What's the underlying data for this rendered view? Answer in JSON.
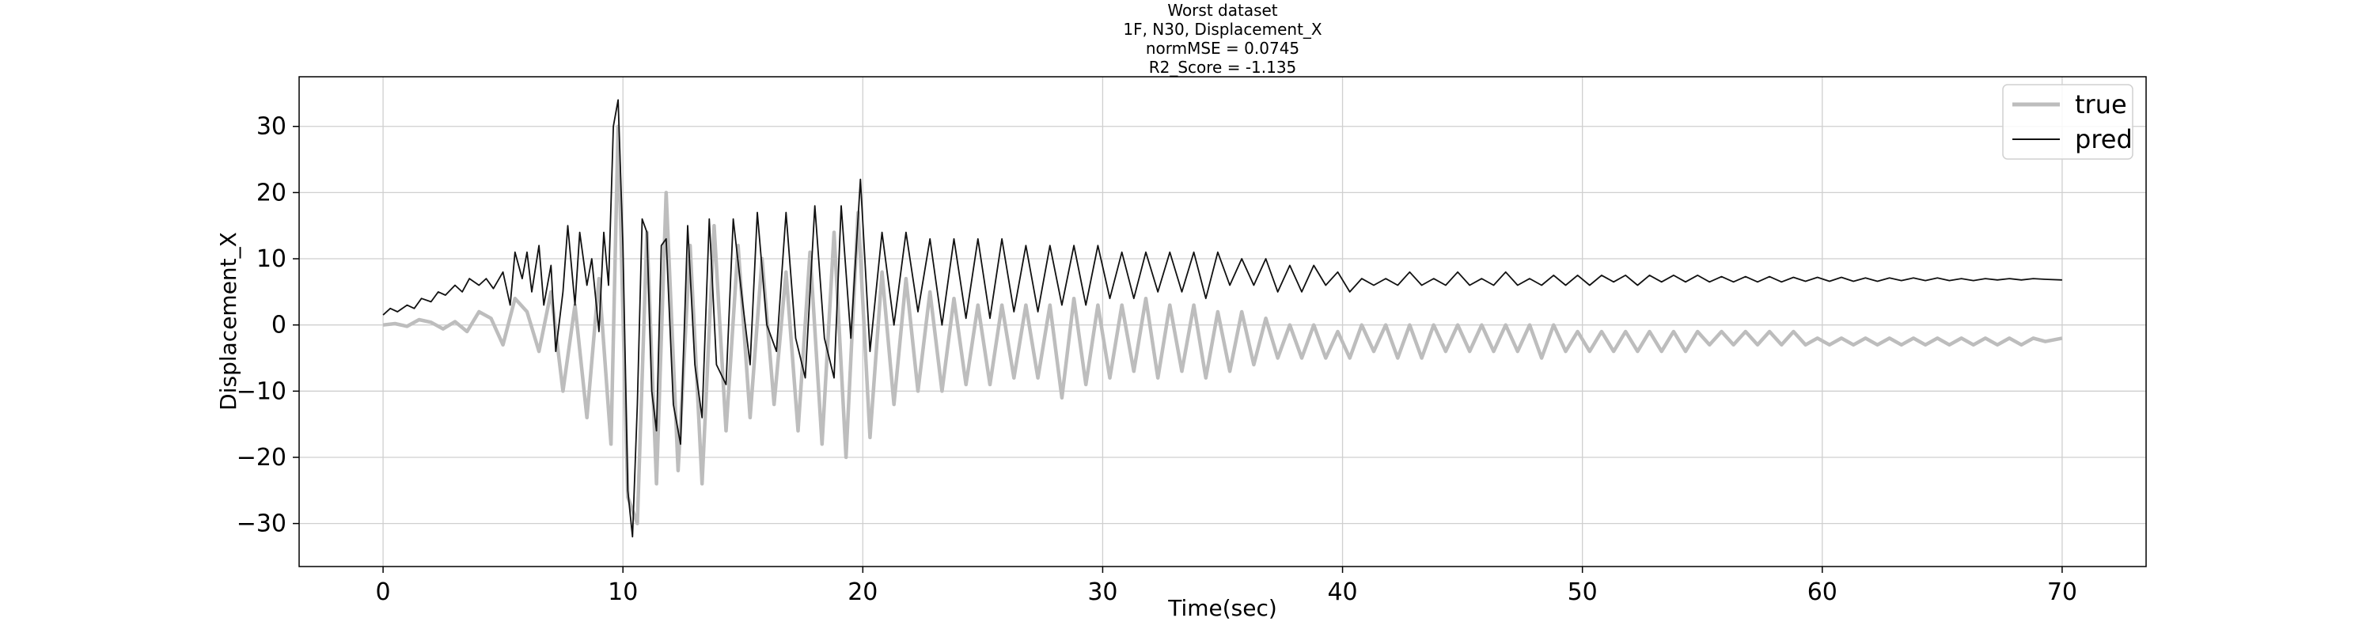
{
  "chart_data": {
    "type": "line",
    "title_lines": [
      "Worst dataset",
      "1F, N30, Displacement_X",
      "normMSE = 0.0745",
      "R2_Score = -1.135"
    ],
    "xlabel": "Time(sec)",
    "ylabel": "Displacement_X",
    "xlim": [
      -3.5,
      73.5
    ],
    "ylim": [
      -36.5,
      37.5
    ],
    "xticks": [
      0,
      10,
      20,
      30,
      40,
      50,
      60,
      70
    ],
    "yticks": [
      -30,
      -20,
      -10,
      0,
      10,
      20,
      30
    ],
    "grid": true,
    "legend": {
      "position": "top-right",
      "entries": [
        "true",
        "pred"
      ]
    },
    "series": [
      {
        "name": "true",
        "color": "#bdbdbd",
        "points": [
          [
            0,
            0
          ],
          [
            0.5,
            0.2
          ],
          [
            1,
            -0.2
          ],
          [
            1.5,
            0.8
          ],
          [
            2,
            0.4
          ],
          [
            2.5,
            -0.6
          ],
          [
            3,
            0.5
          ],
          [
            3.5,
            -1
          ],
          [
            4,
            2
          ],
          [
            4.5,
            1
          ],
          [
            5,
            -3
          ],
          [
            5.5,
            4
          ],
          [
            6,
            2
          ],
          [
            6.5,
            -4
          ],
          [
            7,
            5
          ],
          [
            7.5,
            -10
          ],
          [
            8,
            3
          ],
          [
            8.5,
            -14
          ],
          [
            9,
            7
          ],
          [
            9.5,
            -18
          ],
          [
            9.8,
            30
          ],
          [
            10.2,
            -26
          ],
          [
            10.6,
            -30
          ],
          [
            11,
            14
          ],
          [
            11.4,
            -24
          ],
          [
            11.8,
            20
          ],
          [
            12.3,
            -22
          ],
          [
            12.8,
            12
          ],
          [
            13.3,
            -24
          ],
          [
            13.8,
            15
          ],
          [
            14.3,
            -16
          ],
          [
            14.8,
            12
          ],
          [
            15.3,
            -14
          ],
          [
            15.8,
            10
          ],
          [
            16.3,
            -12
          ],
          [
            16.8,
            8
          ],
          [
            17.3,
            -16
          ],
          [
            17.8,
            11
          ],
          [
            18.3,
            -18
          ],
          [
            18.8,
            14
          ],
          [
            19.3,
            -20
          ],
          [
            19.8,
            17
          ],
          [
            20.3,
            -17
          ],
          [
            20.8,
            8
          ],
          [
            21.3,
            -12
          ],
          [
            21.8,
            7
          ],
          [
            22.3,
            -10
          ],
          [
            22.8,
            5
          ],
          [
            23.3,
            -10
          ],
          [
            23.8,
            4
          ],
          [
            24.3,
            -9
          ],
          [
            24.8,
            3
          ],
          [
            25.3,
            -9
          ],
          [
            25.8,
            3
          ],
          [
            26.3,
            -8
          ],
          [
            26.8,
            3
          ],
          [
            27.3,
            -8
          ],
          [
            27.8,
            3
          ],
          [
            28.3,
            -11
          ],
          [
            28.8,
            4
          ],
          [
            29.3,
            -9
          ],
          [
            29.8,
            3
          ],
          [
            30.3,
            -8
          ],
          [
            30.8,
            3
          ],
          [
            31.3,
            -7
          ],
          [
            31.8,
            4
          ],
          [
            32.3,
            -8
          ],
          [
            32.8,
            3
          ],
          [
            33.3,
            -7
          ],
          [
            33.8,
            3
          ],
          [
            34.3,
            -8
          ],
          [
            34.8,
            2
          ],
          [
            35.3,
            -7
          ],
          [
            35.8,
            2
          ],
          [
            36.3,
            -6
          ],
          [
            36.8,
            1
          ],
          [
            37.3,
            -5
          ],
          [
            37.8,
            0
          ],
          [
            38.3,
            -5
          ],
          [
            38.8,
            0
          ],
          [
            39.3,
            -5
          ],
          [
            39.8,
            -1
          ],
          [
            40.3,
            -5
          ],
          [
            40.8,
            0
          ],
          [
            41.3,
            -4
          ],
          [
            41.8,
            0
          ],
          [
            42.3,
            -5
          ],
          [
            42.8,
            0
          ],
          [
            43.3,
            -5
          ],
          [
            43.8,
            0
          ],
          [
            44.3,
            -4
          ],
          [
            44.8,
            0
          ],
          [
            45.3,
            -4
          ],
          [
            45.8,
            0
          ],
          [
            46.3,
            -4
          ],
          [
            46.8,
            0
          ],
          [
            47.3,
            -4
          ],
          [
            47.8,
            0
          ],
          [
            48.3,
            -5
          ],
          [
            48.8,
            0
          ],
          [
            49.3,
            -4
          ],
          [
            49.8,
            -1
          ],
          [
            50.3,
            -4
          ],
          [
            50.8,
            -1
          ],
          [
            51.3,
            -4
          ],
          [
            51.8,
            -1
          ],
          [
            52.3,
            -4
          ],
          [
            52.8,
            -1
          ],
          [
            53.3,
            -4
          ],
          [
            53.8,
            -1
          ],
          [
            54.3,
            -4
          ],
          [
            54.8,
            -1
          ],
          [
            55.3,
            -3
          ],
          [
            55.8,
            -1
          ],
          [
            56.3,
            -3
          ],
          [
            56.8,
            -1
          ],
          [
            57.3,
            -3
          ],
          [
            57.8,
            -1
          ],
          [
            58.3,
            -3
          ],
          [
            58.8,
            -1
          ],
          [
            59.3,
            -3
          ],
          [
            59.8,
            -2
          ],
          [
            60.3,
            -3
          ],
          [
            60.8,
            -2
          ],
          [
            61.3,
            -3
          ],
          [
            61.8,
            -2
          ],
          [
            62.3,
            -3
          ],
          [
            62.8,
            -2
          ],
          [
            63.3,
            -3
          ],
          [
            63.8,
            -2
          ],
          [
            64.3,
            -3
          ],
          [
            64.8,
            -2
          ],
          [
            65.3,
            -3
          ],
          [
            65.8,
            -2
          ],
          [
            66.3,
            -3
          ],
          [
            66.8,
            -2
          ],
          [
            67.3,
            -3
          ],
          [
            67.8,
            -2
          ],
          [
            68.3,
            -3
          ],
          [
            68.8,
            -2
          ],
          [
            69.3,
            -2.5
          ],
          [
            70,
            -2
          ]
        ]
      },
      {
        "name": "pred",
        "color": "#111111",
        "points": [
          [
            0,
            1.5
          ],
          [
            0.3,
            2.5
          ],
          [
            0.6,
            2
          ],
          [
            1,
            3
          ],
          [
            1.3,
            2.5
          ],
          [
            1.6,
            4
          ],
          [
            2,
            3.5
          ],
          [
            2.3,
            5
          ],
          [
            2.6,
            4.5
          ],
          [
            3,
            6
          ],
          [
            3.3,
            5
          ],
          [
            3.6,
            7
          ],
          [
            4,
            6
          ],
          [
            4.3,
            7
          ],
          [
            4.6,
            5.5
          ],
          [
            5,
            8
          ],
          [
            5.3,
            3
          ],
          [
            5.5,
            11
          ],
          [
            5.8,
            7
          ],
          [
            6,
            11
          ],
          [
            6.2,
            5
          ],
          [
            6.5,
            12
          ],
          [
            6.7,
            3
          ],
          [
            7,
            9
          ],
          [
            7.2,
            -4
          ],
          [
            7.5,
            5
          ],
          [
            7.7,
            15
          ],
          [
            8,
            3
          ],
          [
            8.2,
            14
          ],
          [
            8.5,
            6
          ],
          [
            8.7,
            10
          ],
          [
            9,
            -1
          ],
          [
            9.2,
            14
          ],
          [
            9.4,
            6
          ],
          [
            9.6,
            30
          ],
          [
            9.8,
            34
          ],
          [
            10,
            12
          ],
          [
            10.2,
            -25
          ],
          [
            10.4,
            -32
          ],
          [
            10.6,
            -12
          ],
          [
            10.8,
            16
          ],
          [
            11,
            14
          ],
          [
            11.2,
            -10
          ],
          [
            11.4,
            -16
          ],
          [
            11.6,
            12
          ],
          [
            11.8,
            13
          ],
          [
            12.1,
            -12
          ],
          [
            12.4,
            -18
          ],
          [
            12.7,
            15
          ],
          [
            13,
            -6
          ],
          [
            13.3,
            -14
          ],
          [
            13.6,
            16
          ],
          [
            13.9,
            -6
          ],
          [
            14.3,
            -9
          ],
          [
            14.6,
            16
          ],
          [
            15,
            3
          ],
          [
            15.3,
            -6
          ],
          [
            15.6,
            17
          ],
          [
            16,
            0
          ],
          [
            16.4,
            -4
          ],
          [
            16.8,
            17
          ],
          [
            17.2,
            -2
          ],
          [
            17.6,
            -8
          ],
          [
            18,
            18
          ],
          [
            18.4,
            -2
          ],
          [
            18.8,
            -8
          ],
          [
            19.1,
            18
          ],
          [
            19.5,
            -2
          ],
          [
            19.9,
            22
          ],
          [
            20.3,
            -4
          ],
          [
            20.8,
            14
          ],
          [
            21.3,
            0
          ],
          [
            21.8,
            14
          ],
          [
            22.3,
            2
          ],
          [
            22.8,
            13
          ],
          [
            23.3,
            0
          ],
          [
            23.8,
            13
          ],
          [
            24.3,
            1
          ],
          [
            24.8,
            13
          ],
          [
            25.3,
            1
          ],
          [
            25.8,
            13
          ],
          [
            26.3,
            2
          ],
          [
            26.8,
            12
          ],
          [
            27.3,
            2
          ],
          [
            27.8,
            12
          ],
          [
            28.3,
            3
          ],
          [
            28.8,
            12
          ],
          [
            29.3,
            3
          ],
          [
            29.8,
            12
          ],
          [
            30.3,
            4
          ],
          [
            30.8,
            11
          ],
          [
            31.3,
            4
          ],
          [
            31.8,
            11
          ],
          [
            32.3,
            5
          ],
          [
            32.8,
            11
          ],
          [
            33.3,
            5
          ],
          [
            33.8,
            11
          ],
          [
            34.3,
            4
          ],
          [
            34.8,
            11
          ],
          [
            35.3,
            6
          ],
          [
            35.8,
            10
          ],
          [
            36.3,
            6
          ],
          [
            36.8,
            10
          ],
          [
            37.3,
            5
          ],
          [
            37.8,
            9
          ],
          [
            38.3,
            5
          ],
          [
            38.8,
            9
          ],
          [
            39.3,
            6
          ],
          [
            39.8,
            8
          ],
          [
            40.3,
            5
          ],
          [
            40.8,
            7
          ],
          [
            41.3,
            6
          ],
          [
            41.8,
            7
          ],
          [
            42.3,
            6
          ],
          [
            42.8,
            8
          ],
          [
            43.3,
            6
          ],
          [
            43.8,
            7
          ],
          [
            44.3,
            6
          ],
          [
            44.8,
            8
          ],
          [
            45.3,
            6
          ],
          [
            45.8,
            7
          ],
          [
            46.3,
            6
          ],
          [
            46.8,
            8
          ],
          [
            47.3,
            6
          ],
          [
            47.8,
            7
          ],
          [
            48.3,
            6
          ],
          [
            48.8,
            7.5
          ],
          [
            49.3,
            6
          ],
          [
            49.8,
            7.5
          ],
          [
            50.3,
            6
          ],
          [
            50.8,
            7.5
          ],
          [
            51.3,
            6.5
          ],
          [
            51.8,
            7.5
          ],
          [
            52.3,
            6
          ],
          [
            52.8,
            7.5
          ],
          [
            53.3,
            6.5
          ],
          [
            53.8,
            7.5
          ],
          [
            54.3,
            6.5
          ],
          [
            54.8,
            7.5
          ],
          [
            55.3,
            6.5
          ],
          [
            55.8,
            7.3
          ],
          [
            56.3,
            6.5
          ],
          [
            56.8,
            7.3
          ],
          [
            57.3,
            6.5
          ],
          [
            57.8,
            7.3
          ],
          [
            58.3,
            6.5
          ],
          [
            58.8,
            7.2
          ],
          [
            59.3,
            6.6
          ],
          [
            59.8,
            7.2
          ],
          [
            60.3,
            6.6
          ],
          [
            60.8,
            7.2
          ],
          [
            61.3,
            6.6
          ],
          [
            61.8,
            7.1
          ],
          [
            62.3,
            6.6
          ],
          [
            62.8,
            7.1
          ],
          [
            63.3,
            6.7
          ],
          [
            63.8,
            7.1
          ],
          [
            64.3,
            6.7
          ],
          [
            64.8,
            7.1
          ],
          [
            65.3,
            6.7
          ],
          [
            65.8,
            7
          ],
          [
            66.3,
            6.7
          ],
          [
            66.8,
            7
          ],
          [
            67.3,
            6.8
          ],
          [
            67.8,
            7
          ],
          [
            68.3,
            6.8
          ],
          [
            68.8,
            7
          ],
          [
            69.3,
            6.9
          ],
          [
            70,
            6.8
          ]
        ]
      }
    ]
  }
}
